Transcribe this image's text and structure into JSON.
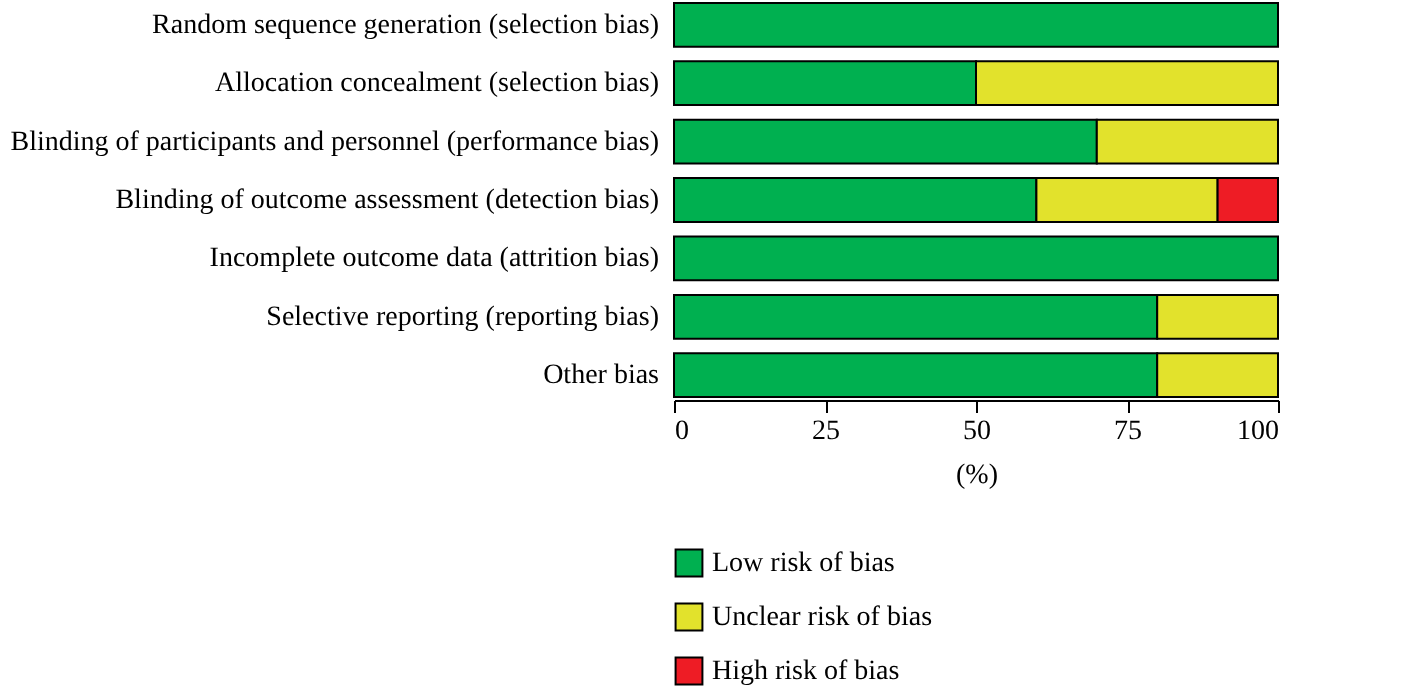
{
  "chart_data": {
    "type": "bar",
    "orientation": "horizontal",
    "stacked": true,
    "xlabel": "(%)",
    "categories": [
      "Random sequence generation (selection bias)",
      "Allocation concealment (selection bias)",
      "Blinding of participants and personnel (performance bias)",
      "Blinding of outcome assessment (detection bias)",
      "Incomplete outcome data (attrition bias)",
      "Selective reporting (reporting bias)",
      "Other bias"
    ],
    "series": [
      {
        "name": "Low risk of bias",
        "color": "#00b050",
        "values": [
          100,
          50,
          70,
          60,
          100,
          80,
          80
        ]
      },
      {
        "name": "Unclear risk of bias",
        "color": "#e2e22c",
        "values": [
          null,
          50,
          30,
          30,
          null,
          20,
          20
        ]
      },
      {
        "name": "High risk of bias",
        "color": "#ee1c25",
        "values": [
          null,
          null,
          null,
          10,
          null,
          null,
          null
        ]
      }
    ],
    "xlim": [
      0,
      100
    ],
    "xticks": [
      0,
      25,
      50,
      75,
      100
    ],
    "legend": "bottom left",
    "grid": false
  }
}
